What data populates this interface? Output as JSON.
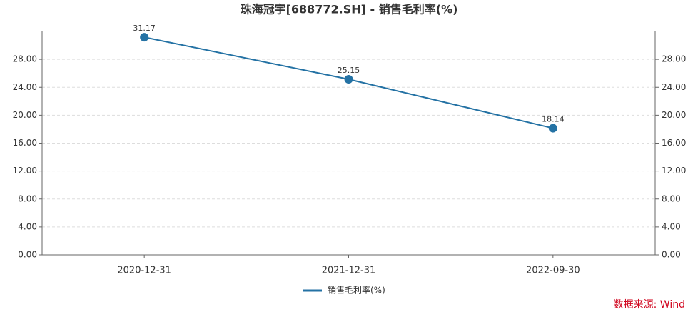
{
  "chart_data": {
    "type": "line",
    "title": "珠海冠宇[688772.SH] - 销售毛利率(%)",
    "categories": [
      "2020-12-31",
      "2021-12-31",
      "2022-09-30"
    ],
    "series": [
      {
        "name": "销售毛利率(%)",
        "color": "#2472a4",
        "values": [
          31.17,
          25.15,
          18.14
        ]
      }
    ],
    "ylim": [
      0,
      32
    ],
    "yticks": [
      {
        "value": 0,
        "label": "0.00"
      },
      {
        "value": 4,
        "label": "4.00"
      },
      {
        "value": 8,
        "label": "8.00"
      },
      {
        "value": 12,
        "label": "12.00"
      },
      {
        "value": 16,
        "label": "16.00"
      },
      {
        "value": 20,
        "label": "20.00"
      },
      {
        "value": 24,
        "label": "24.00"
      },
      {
        "value": 28,
        "label": "28.00"
      }
    ],
    "grid": true,
    "source": "数据来源: Wind"
  }
}
